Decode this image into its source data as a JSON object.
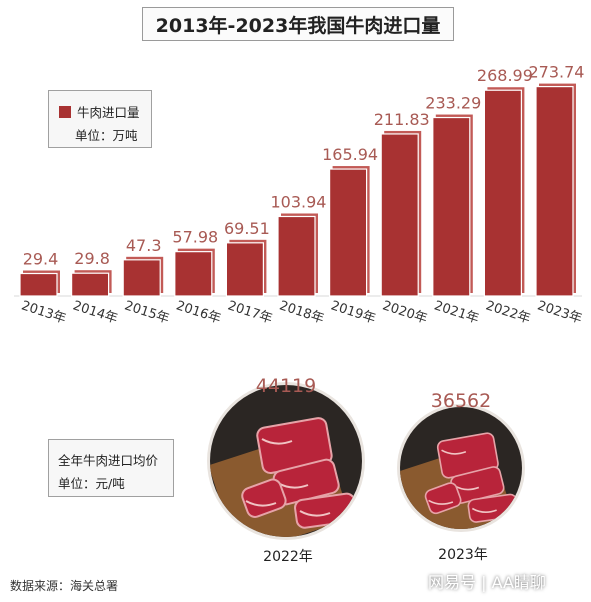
{
  "title": "2013年-2023年我国牛肉进口量",
  "legend": {
    "series_label": "牛肉进口量",
    "unit_label": "单位：万吨"
  },
  "colors": {
    "bar": "#a83232",
    "bar_light": "#c25a56",
    "label": "#a85a54"
  },
  "chart_data": {
    "type": "bar",
    "title": "2013年-2023年我国牛肉进口量",
    "categories": [
      "2013年",
      "2014年",
      "2015年",
      "2016年",
      "2017年",
      "2018年",
      "2019年",
      "2020年",
      "2021年",
      "2022年",
      "2023年"
    ],
    "series": [
      {
        "name": "牛肉进口量",
        "values": [
          29.4,
          29.8,
          47.3,
          57.98,
          69.51,
          103.94,
          165.94,
          211.83,
          233.29,
          268.99,
          273.74
        ]
      }
    ],
    "value_labels": [
      "29.4",
      "29.8",
      "47.3",
      "57.98",
      "69.51",
      "103.94",
      "165.94",
      "211.83",
      "233.29",
      "268.99",
      "273.74"
    ],
    "unit": "单位：万吨",
    "legend_position": "top-left",
    "grid": false
  },
  "price": {
    "title": "全年牛肉进口均价",
    "unit_label": "单位：元/吨",
    "items": [
      {
        "year": "2022年",
        "value": "44119"
      },
      {
        "year": "2023年",
        "value": "36562"
      }
    ]
  },
  "source": "数据来源：海关总署",
  "watermark": "网易号 | AA睛聊"
}
